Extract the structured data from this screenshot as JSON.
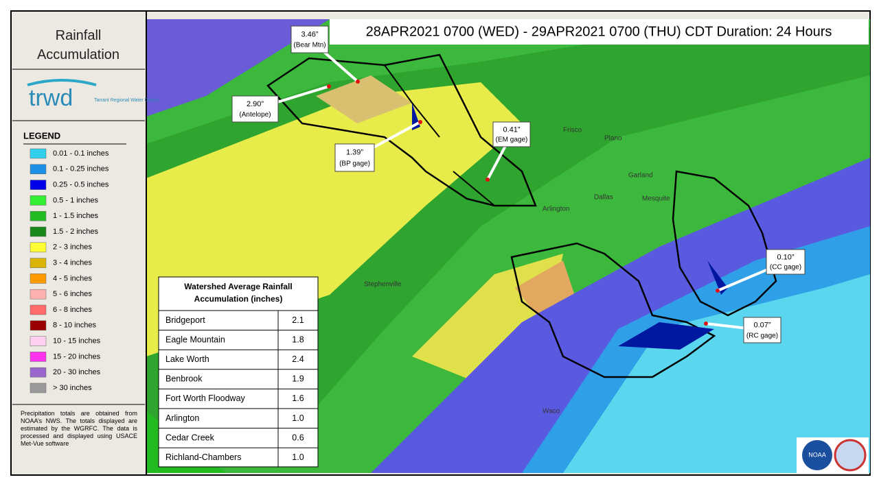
{
  "sidebar": {
    "title": "Rainfall Accumulation",
    "logo": {
      "name": "trwd",
      "sub": "Tarrant Regional Water District"
    },
    "legend": {
      "title": "LEGEND",
      "items": [
        {
          "label": "0.01 - 0.1 inches",
          "color": "#33d0ee"
        },
        {
          "label": "0.1 - 0.25 inches",
          "color": "#1e8fe6"
        },
        {
          "label": "0.25 - 0.5 inches",
          "color": "#0000e8"
        },
        {
          "label": "0.5 - 1 inches",
          "color": "#33ee33"
        },
        {
          "label": "1 - 1.5 inches",
          "color": "#22bb22"
        },
        {
          "label": "1.5 - 2 inches",
          "color": "#1a871a"
        },
        {
          "label": "2 - 3 inches",
          "color": "#ffff33"
        },
        {
          "label": "3 - 4 inches",
          "color": "#d9b400"
        },
        {
          "label": "4 - 5 inches",
          "color": "#ff9a00"
        },
        {
          "label": "5 - 6 inches",
          "color": "#ffb0b0"
        },
        {
          "label": "6 - 8 inches",
          "color": "#ff6a6a"
        },
        {
          "label": "8 - 10 inches",
          "color": "#990000"
        },
        {
          "label": "10 - 15 inches",
          "color": "#ffd0f0"
        },
        {
          "label": "15 - 20 inches",
          "color": "#ff33ee"
        },
        {
          "label": "20 - 30 inches",
          "color": "#9a66cc"
        },
        {
          "label": "> 30 inches",
          "color": "#9a9a9a"
        }
      ]
    },
    "note": "Precipitation totals are obtained from NOAA’s NWS. The totals displayed are estimated by the WGRFC. The data is processed and displayed using USACE Met-Vue software"
  },
  "header": {
    "title": "28APR2021 0700 (WED) - 29APR2021 0700 (THU) CDT Duration: 24 Hours"
  },
  "callouts": [
    {
      "value": "3.46”",
      "label": "(Bear Mtn)"
    },
    {
      "value": "2.90”",
      "label": "(Antelope)"
    },
    {
      "value": "1.39”",
      "label": "(BP gage)"
    },
    {
      "value": "0.41”",
      "label": "(EM gage)"
    },
    {
      "value": "0.10”",
      "label": "(CC gage)"
    },
    {
      "value": "0.07”",
      "label": "(RC gage)"
    }
  ],
  "map_labels": [
    "Frisco",
    "Plano",
    "Garland",
    "Dallas",
    "Mesquite",
    "Arlington",
    "Stephenville",
    "Waco"
  ],
  "table": {
    "title": "Watershed Average Rainfall Accumulation (inches)",
    "rows": [
      [
        "Bridgeport",
        "2.1"
      ],
      [
        "Eagle Mountain",
        "1.8"
      ],
      [
        "Lake Worth",
        "2.4"
      ],
      [
        "Benbrook",
        "1.9"
      ],
      [
        "Fort Worth  Floodway",
        "1.6"
      ],
      [
        "Arlington",
        "1.0"
      ],
      [
        "Cedar Creek",
        "0.6"
      ],
      [
        "Richland-Chambers",
        "1.0"
      ]
    ]
  },
  "badge": "NOAA"
}
